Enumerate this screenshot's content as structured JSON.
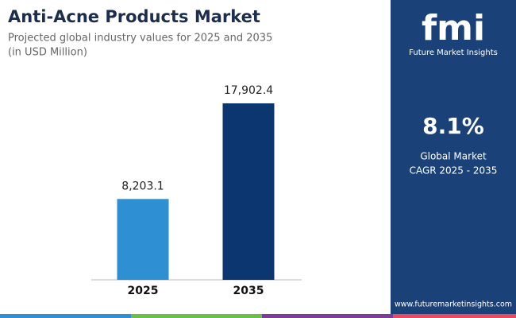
{
  "chart_data": {
    "type": "bar",
    "title": "Anti-Acne Products Market",
    "subtitle": [
      "Projected global industry values for 2025 and 2035",
      "(in USD Million)"
    ],
    "categories": [
      "2025",
      "2035"
    ],
    "values": [
      8203.1,
      17902.4
    ],
    "value_labels": [
      "8,203.1",
      "17,902.4"
    ],
    "colors": [
      "#2e8fd3",
      "#0c3670"
    ],
    "ylim": [
      0,
      20000
    ]
  },
  "panel": {
    "logo": "fmi",
    "brand": "Future Market Insights",
    "cagr": "8.1%",
    "cagr_label": [
      "Global Market",
      "CAGR 2025 - 2035"
    ],
    "website": "www.futuremarketinsights.com"
  }
}
